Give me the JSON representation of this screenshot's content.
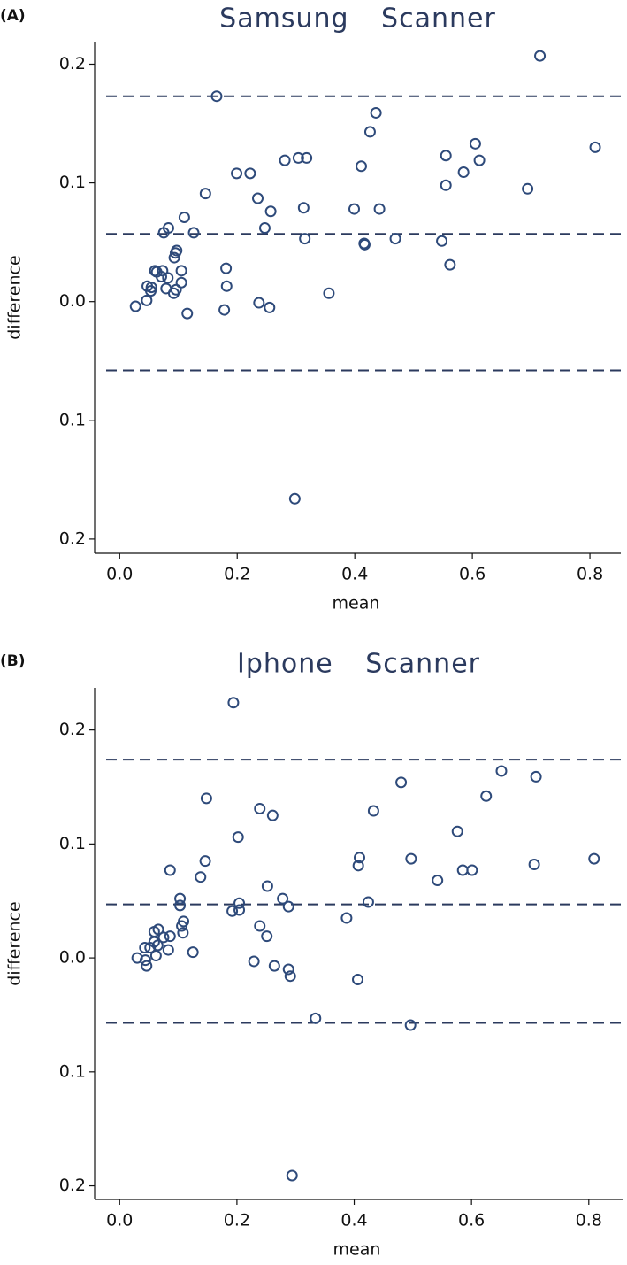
{
  "chart_data": [
    {
      "type": "scatter",
      "panel_label": "(A)",
      "title": "Samsung Scanner",
      "xlabel": "mean",
      "ylabel": "difference",
      "color": "#2e4a7a",
      "xlim": [
        -0.02,
        0.83
      ],
      "ylim": [
        -0.212,
        0.219
      ],
      "xticks": [
        {
          "value": 0,
          "label": "0.0"
        },
        0.2,
        0.4,
        0.6,
        0.8
      ],
      "yticks": [
        {
          "value": -0.2,
          "label": "0.2"
        },
        {
          "value": -0.1,
          "label": "0.1"
        },
        {
          "value": 0,
          "label": "0.0"
        },
        0.1,
        0.2
      ],
      "reference_lines": [
        0.173,
        0.057,
        -0.058
      ],
      "x": [
        0.715,
        0.165,
        0.436,
        0.426,
        0.605,
        0.809,
        0.555,
        0.281,
        0.304,
        0.318,
        0.612,
        0.411,
        0.199,
        0.222,
        0.585,
        0.555,
        0.694,
        0.146,
        0.235,
        0.257,
        0.313,
        0.399,
        0.442,
        0.11,
        0.083,
        0.247,
        0.126,
        0.075,
        0.315,
        0.416,
        0.417,
        0.469,
        0.548,
        0.562,
        0.097,
        0.095,
        0.093,
        0.06,
        0.063,
        0.073,
        0.105,
        0.181,
        0.071,
        0.082,
        0.105,
        0.047,
        0.054,
        0.079,
        0.096,
        0.182,
        0.053,
        0.092,
        0.356,
        0.027,
        0.046,
        0.115,
        0.178,
        0.237,
        0.255,
        0.298
      ],
      "y": [
        0.207,
        0.173,
        0.159,
        0.143,
        0.133,
        0.13,
        0.123,
        0.119,
        0.121,
        0.121,
        0.119,
        0.114,
        0.108,
        0.108,
        0.109,
        0.098,
        0.095,
        0.091,
        0.087,
        0.076,
        0.079,
        0.078,
        0.078,
        0.071,
        0.062,
        0.062,
        0.058,
        0.058,
        0.053,
        0.049,
        0.048,
        0.053,
        0.051,
        0.031,
        0.043,
        0.041,
        0.037,
        0.026,
        0.025,
        0.026,
        0.026,
        0.028,
        0.021,
        0.02,
        0.016,
        0.013,
        0.012,
        0.011,
        0.01,
        0.013,
        0.009,
        0.007,
        0.007,
        -0.004,
        0.001,
        -0.01,
        -0.007,
        -0.001,
        -0.005,
        -0.166
      ]
    },
    {
      "type": "scatter",
      "panel_label": "(B)",
      "title": "Iphone Scanner",
      "xlabel": "mean",
      "ylabel": "difference",
      "color": "#2e4a7a",
      "xlim": [
        -0.02,
        0.835
      ],
      "ylim": [
        -0.212,
        0.237
      ],
      "xticks": [
        {
          "value": 0,
          "label": "0.0"
        },
        0.2,
        0.4,
        0.6,
        0.8
      ],
      "yticks": [
        {
          "value": -0.2,
          "label": "0.2"
        },
        {
          "value": -0.1,
          "label": "0.1"
        },
        {
          "value": 0,
          "label": "0.0"
        },
        0.1,
        0.2
      ],
      "reference_lines": [
        0.174,
        0.047,
        -0.057
      ],
      "x": [
        0.194,
        0.148,
        0.48,
        0.651,
        0.71,
        0.625,
        0.239,
        0.261,
        0.433,
        0.202,
        0.576,
        0.409,
        0.407,
        0.497,
        0.707,
        0.809,
        0.086,
        0.146,
        0.138,
        0.585,
        0.601,
        0.542,
        0.252,
        0.103,
        0.278,
        0.103,
        0.204,
        0.204,
        0.192,
        0.424,
        0.288,
        0.109,
        0.106,
        0.108,
        0.239,
        0.387,
        0.066,
        0.059,
        0.086,
        0.075,
        0.251,
        0.059,
        0.043,
        0.052,
        0.065,
        0.083,
        0.03,
        0.062,
        0.125,
        0.044,
        0.046,
        0.288,
        0.229,
        0.264,
        0.291,
        0.406,
        0.334,
        0.496,
        0.294
      ],
      "y": [
        0.224,
        0.14,
        0.154,
        0.164,
        0.159,
        0.142,
        0.131,
        0.125,
        0.129,
        0.106,
        0.111,
        0.088,
        0.081,
        0.087,
        0.082,
        0.087,
        0.077,
        0.085,
        0.071,
        0.077,
        0.077,
        0.068,
        0.063,
        0.052,
        0.052,
        0.046,
        0.048,
        0.042,
        0.041,
        0.049,
        0.045,
        0.032,
        0.028,
        0.022,
        0.028,
        0.035,
        0.025,
        0.023,
        0.019,
        0.018,
        0.019,
        0.014,
        0.009,
        0.009,
        0.011,
        0.007,
        0.0,
        0.002,
        0.005,
        -0.002,
        -0.007,
        -0.01,
        -0.003,
        -0.007,
        -0.016,
        -0.019,
        -0.053,
        -0.059,
        -0.191
      ]
    }
  ]
}
